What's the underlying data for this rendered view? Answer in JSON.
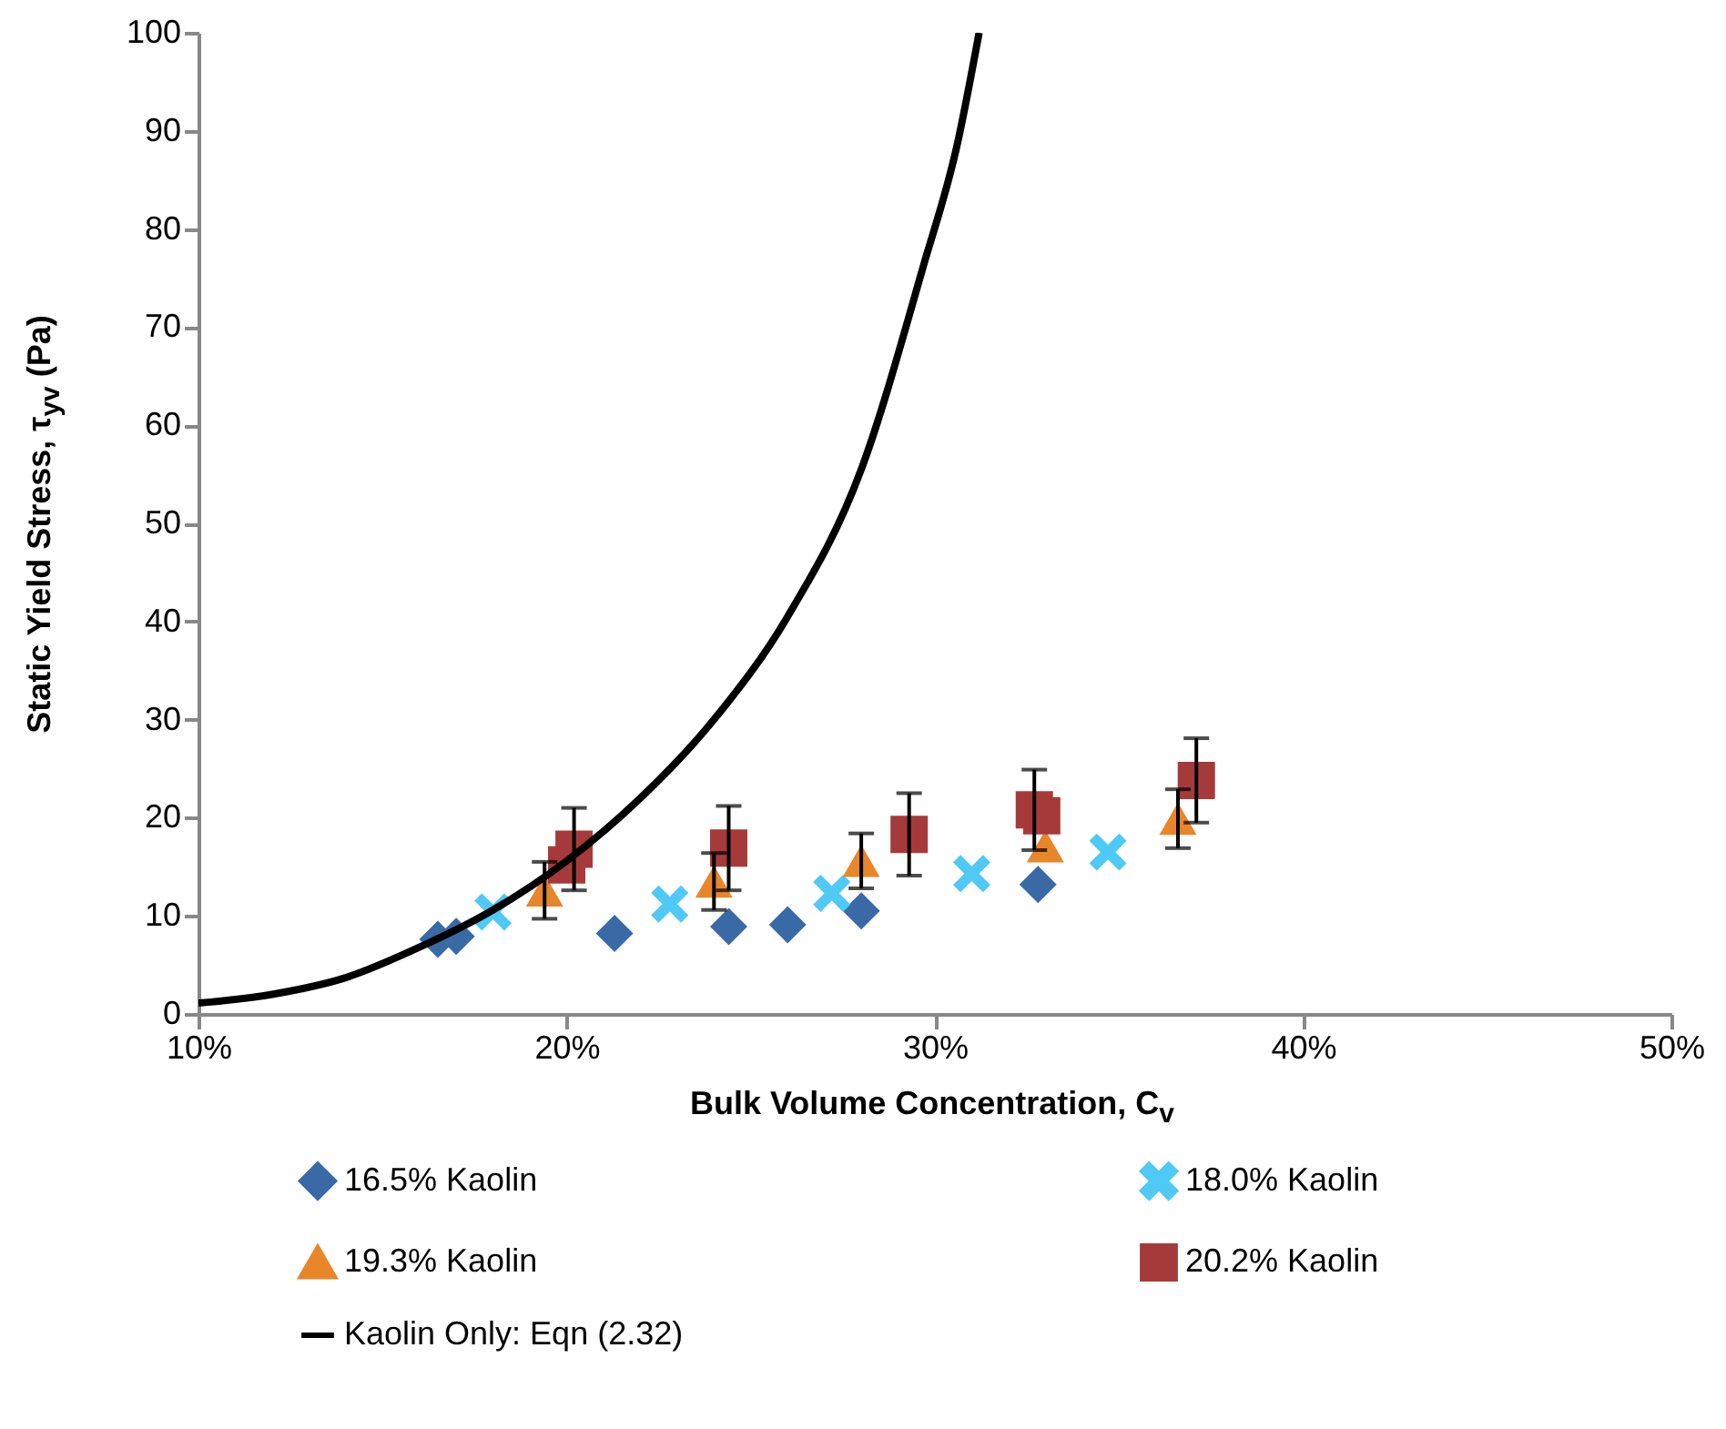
{
  "chart_data": {
    "type": "scatter",
    "xlabel": "Bulk Volume Concentration, C$_{v}$",
    "ylabel": "Static Yield Stress, τ$_{yv}$ (Pa)",
    "xlim": [
      10,
      50
    ],
    "xticks": [
      {
        "value": 10,
        "label": "10%"
      },
      {
        "value": 20,
        "label": "20%"
      },
      {
        "value": 30,
        "label": "30%"
      },
      {
        "value": 40,
        "label": "40%"
      },
      {
        "value": 50,
        "label": "50%"
      }
    ],
    "ylim": [
      0,
      100
    ],
    "yticks": [
      0,
      10,
      20,
      30,
      40,
      50,
      60,
      70,
      80,
      90,
      100
    ],
    "grid": false,
    "legend": "bottom",
    "series": [
      {
        "name": "16.5% Kaolin",
        "color": "#3a6aa6",
        "marker": "diamond",
        "x": [
          16.5,
          17.0,
          21.3,
          24.4,
          26.0,
          28.0,
          32.8
        ],
        "values": [
          7.6,
          7.9,
          8.2,
          8.9,
          9.1,
          10.5,
          13.2
        ]
      },
      {
        "name": "18.0% Kaolin",
        "color": "#4fc9f5",
        "marker": "cross",
        "x": [
          18.0,
          22.8,
          27.2,
          31.0,
          34.7
        ],
        "values": [
          10.4,
          11.2,
          12.3,
          14.3,
          16.5
        ]
      },
      {
        "name": "19.3% Kaolin",
        "color": "#e8862a",
        "marker": "triangle",
        "x": [
          19.4,
          24.0,
          28.0,
          33.0,
          36.6
        ],
        "values": [
          12.6,
          13.5,
          15.6,
          17.1,
          19.9
        ],
        "errors": [
          2.9,
          2.9,
          2.8,
          null,
          3.0
        ]
      },
      {
        "name": "20.2% Kaolin",
        "color": "#a63a3a",
        "marker": "square",
        "x": [
          20.2,
          20.0,
          24.4,
          29.3,
          32.7,
          32.9,
          37.1
        ],
        "values": [
          16.8,
          15.2,
          16.9,
          18.3,
          20.8,
          20.2,
          23.8
        ],
        "errors": [
          4.2,
          null,
          4.3,
          4.2,
          4.1,
          null,
          4.3
        ]
      },
      {
        "name": "Kaolin Only: Eqn (2.32)",
        "type": "line",
        "color": "#000000",
        "marker": "none",
        "x": [
          10,
          12,
          14,
          16,
          18,
          20,
          22,
          24,
          26,
          28,
          29.7,
          30.6,
          31.2
        ],
        "values": [
          1.1,
          2.0,
          3.7,
          6.8,
          10.6,
          15.6,
          22.0,
          30.0,
          40.5,
          55.5,
          76.4,
          88.5,
          100
        ]
      }
    ]
  }
}
